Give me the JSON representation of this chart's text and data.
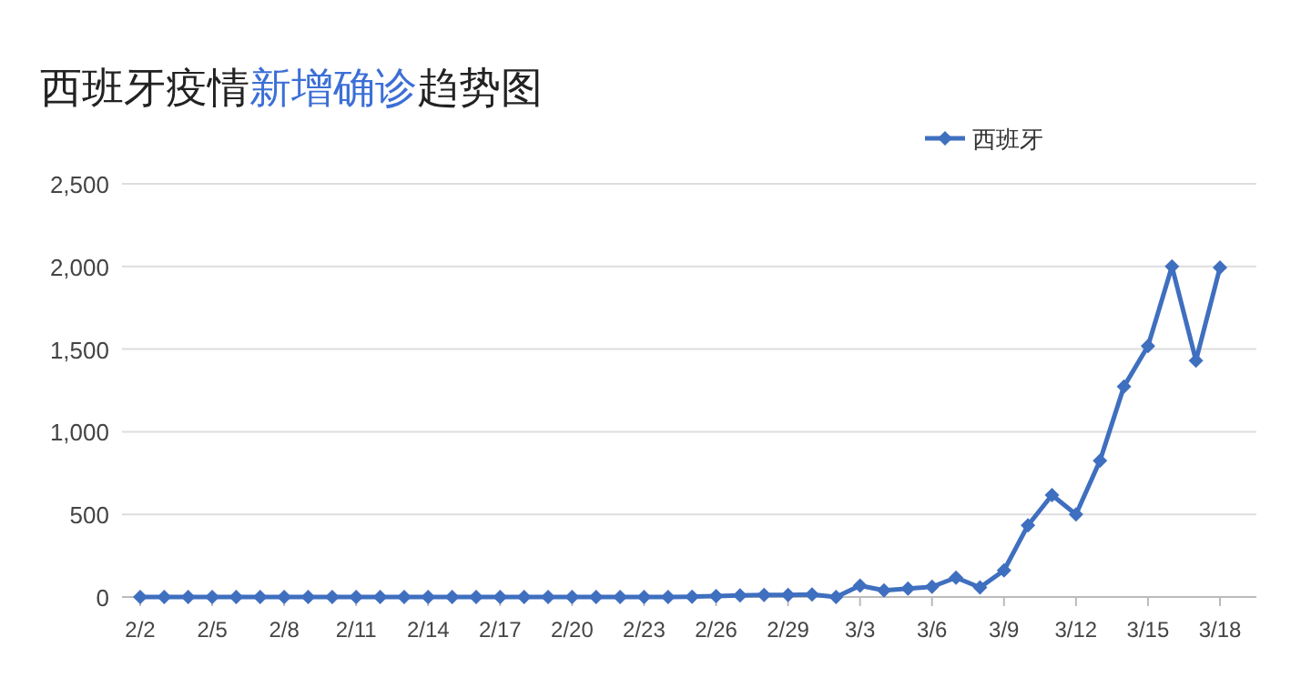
{
  "chart_data": {
    "type": "line",
    "title": "西班牙疫情新增确诊趋势图",
    "categories": [
      "2/2",
      null,
      null,
      "2/5",
      null,
      null,
      "2/8",
      null,
      null,
      "2/11",
      null,
      null,
      "2/14",
      null,
      null,
      "2/17",
      null,
      null,
      "2/20",
      null,
      null,
      "2/23",
      null,
      null,
      "2/26",
      null,
      null,
      "2/29",
      null,
      null,
      "3/3",
      null,
      null,
      "3/6",
      null,
      null,
      "3/9",
      null,
      null,
      "3/12",
      null,
      null,
      "3/15",
      null,
      null,
      "3/18"
    ],
    "series": [
      {
        "name": "西班牙",
        "color": "#3f6fbf",
        "values": [
          0,
          0,
          0,
          0,
          0,
          0,
          0,
          0,
          0,
          0,
          0,
          0,
          0,
          0,
          0,
          0,
          0,
          0,
          0,
          0,
          0,
          0,
          0,
          2,
          6,
          10,
          12,
          13,
          15,
          0,
          69,
          40,
          51,
          62,
          117,
          58,
          161,
          434,
          617,
          500,
          825,
          1274,
          1518,
          2000,
          1431,
          1993
        ]
      }
    ],
    "ylim": [
      0,
      2500
    ],
    "yticks": [
      {
        "value": 0,
        "label": "0"
      },
      {
        "value": 500,
        "label": "500"
      },
      {
        "value": 1000,
        "label": "1,000"
      },
      {
        "value": 1500,
        "label": "1,500"
      },
      {
        "value": 2000,
        "label": "2,000"
      },
      {
        "value": 2500,
        "label": "2,500"
      }
    ],
    "grid": "y",
    "legend": "top",
    "marker": "diamond",
    "line_style": "solid"
  }
}
